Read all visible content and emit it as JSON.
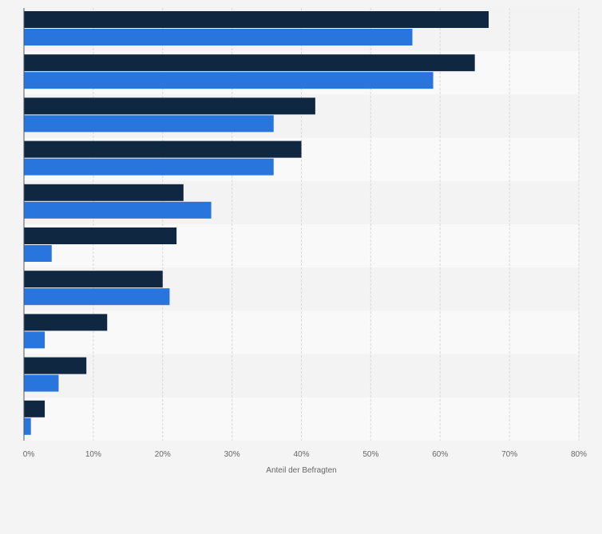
{
  "chart_data": {
    "type": "bar",
    "orientation": "horizontal",
    "categories": [
      "",
      "",
      "",
      "",
      "",
      "",
      "",
      "",
      "",
      ""
    ],
    "series": [
      {
        "values": [
          67,
          65,
          42,
          40,
          23,
          22,
          20,
          12,
          9,
          3
        ]
      },
      {
        "values": [
          56,
          59,
          36,
          36,
          27,
          4,
          21,
          3,
          5,
          1
        ]
      }
    ],
    "xlabel": "Anteil der Befragten",
    "ylabel": "",
    "xlim": [
      0,
      80
    ],
    "xticks": [
      "0%",
      "10%",
      "20%",
      "30%",
      "40%",
      "50%",
      "60%",
      "70%",
      "80%"
    ],
    "grid": "vertical-dashed",
    "legend": "none"
  },
  "colors": {
    "series": [
      "#0f2741",
      "#2876dd"
    ],
    "band_dark": "#f3f3f3",
    "band_light": "#f9f9f9",
    "grid": "#d8d8d8",
    "axis": "#555555"
  }
}
